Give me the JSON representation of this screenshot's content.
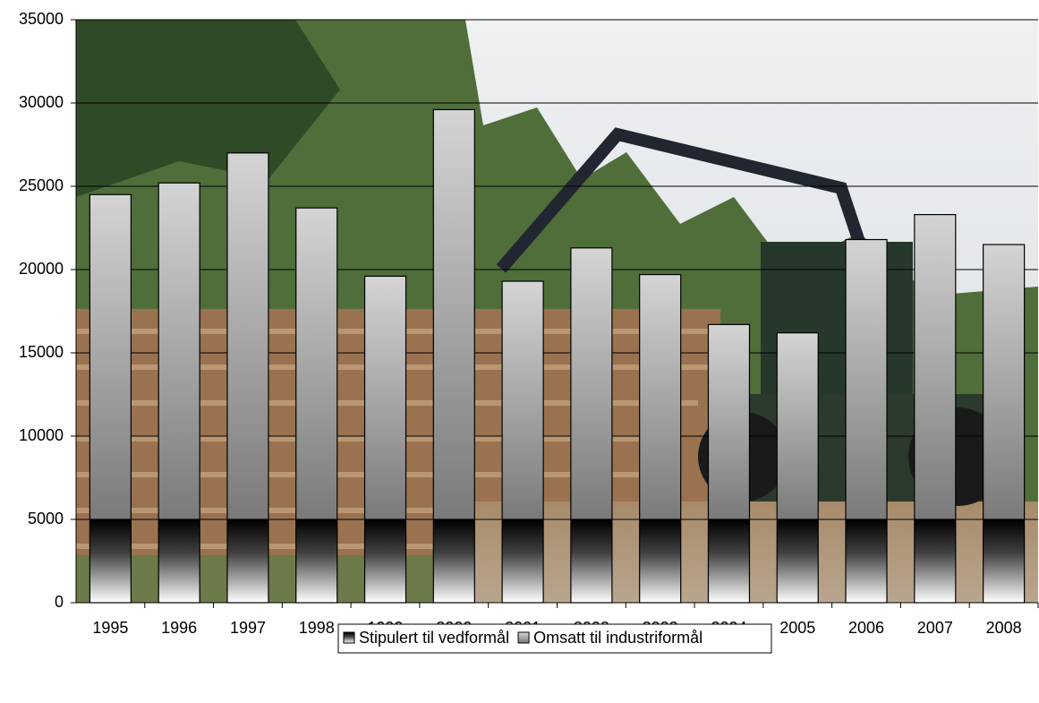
{
  "chart_data": {
    "type": "stacked_bar",
    "categories": [
      "1995",
      "1996",
      "1997",
      "1998",
      "1999",
      "2000",
      "2001",
      "2002",
      "2003",
      "2004",
      "2005",
      "2006",
      "2007",
      "2008"
    ],
    "series": [
      {
        "name": "Stipulert til vedformål",
        "color": "#404040",
        "values": [
          5000,
          5000,
          5000,
          5000,
          5000,
          5000,
          5000,
          5000,
          5000,
          5000,
          5000,
          5000,
          5000,
          5000
        ]
      },
      {
        "name": "Omsatt til industriformål",
        "color": "#7a7a7a",
        "values": [
          19500,
          20200,
          22000,
          18700,
          14600,
          24600,
          14300,
          16300,
          14700,
          11700,
          11200,
          16800,
          18300,
          16500
        ]
      }
    ],
    "ylim": [
      0,
      35000
    ],
    "yticks": [
      0,
      5000,
      10000,
      15000,
      20000,
      25000,
      30000,
      35000
    ],
    "grid": true
  }
}
